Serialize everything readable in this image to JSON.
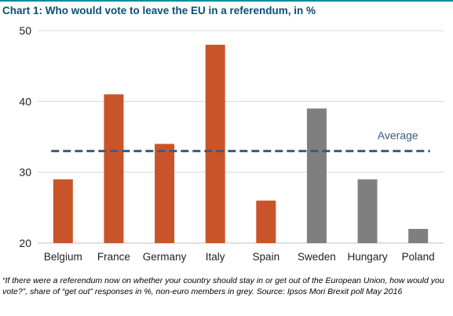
{
  "title": "Chart 1: Who would vote to leave the EU in a referendum, in %",
  "footnote": "“If there were a referendum now on whether your country should stay in or get out of the European Union, how would you vote?”, share of “get out” responses in %, non-euro members in grey.  Source: Ipsos Mori Brexit poll May 2016",
  "colors": {
    "euro": "#c9542a",
    "non_euro": "#7f7f7f",
    "average_line": "#3d5a80",
    "average_label": "#3d5a80",
    "gridline": "#d9d9d9"
  },
  "chart_data": {
    "type": "bar",
    "title": "Chart 1: Who would vote to leave the EU in a referendum, in %",
    "xlabel": "",
    "ylabel": "",
    "categories": [
      "Belgium",
      "France",
      "Germany",
      "Italy",
      "Spain",
      "Sweden",
      "Hungary",
      "Poland"
    ],
    "values": [
      29,
      41,
      34,
      48,
      26,
      39,
      29,
      22
    ],
    "groups": [
      "euro",
      "euro",
      "euro",
      "euro",
      "euro",
      "non-euro",
      "non-euro",
      "non-euro"
    ],
    "ylim": [
      20,
      50
    ],
    "yticks": [
      20,
      30,
      40,
      50
    ],
    "grid": true,
    "legend": "none",
    "reference_line": {
      "label": "Average",
      "value": 33,
      "style": "dashed"
    }
  }
}
